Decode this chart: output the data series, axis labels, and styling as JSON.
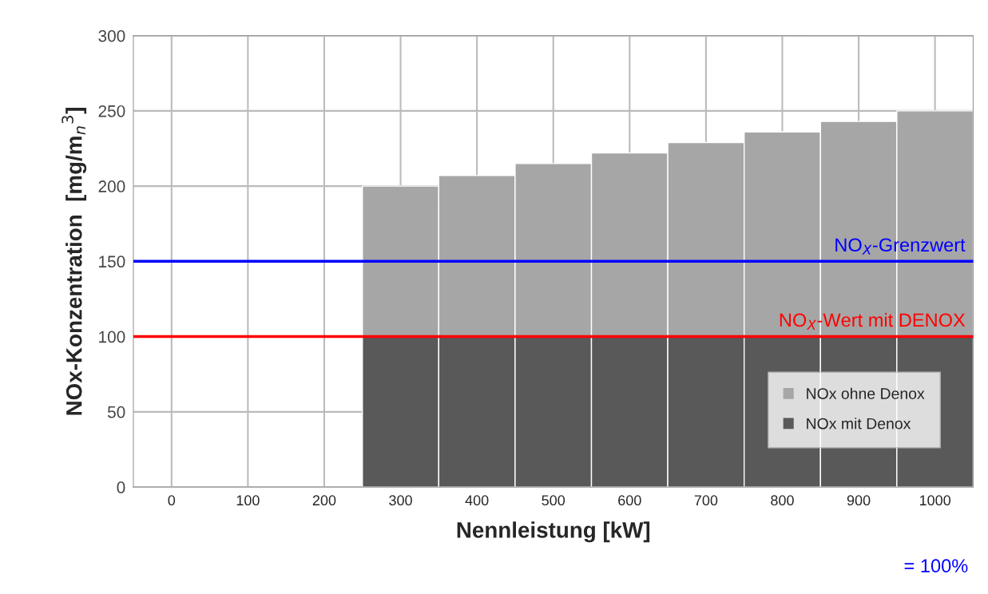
{
  "chart_data": {
    "type": "bar",
    "stacked": true,
    "xlabel": "Nennleistung [kW]",
    "ylabel": "NOx-Konzentration  [mg/m$_{n}$$^{3}$]",
    "categories": [
      "0",
      "100",
      "200",
      "300",
      "400",
      "500",
      "600",
      "700",
      "800",
      "900",
      "1000"
    ],
    "series": [
      {
        "name": "NOx mit Denox",
        "color": "#595959",
        "values": [
          null,
          null,
          null,
          100,
          100,
          100,
          100,
          100,
          100,
          100,
          100
        ]
      },
      {
        "name": "NOx ohne Denox",
        "color": "#a6a6a6",
        "values": [
          null,
          null,
          null,
          100,
          107,
          115,
          122,
          129,
          136,
          143,
          150
        ]
      }
    ],
    "ylim": [
      0,
      300
    ],
    "yticks": [
      0,
      50,
      100,
      150,
      200,
      250,
      300
    ],
    "grid": true,
    "legend": "bottom right",
    "ref_lines": [
      {
        "axis": "y",
        "value": 150,
        "label": "NO$_{X}$-Grenzwert",
        "color": "#0000ff"
      },
      {
        "axis": "y",
        "value": 100,
        "label": "NO$_{X}$-Wert mit DENOX",
        "color": "#ff0000"
      }
    ],
    "annotations": [
      "= 100%"
    ]
  }
}
